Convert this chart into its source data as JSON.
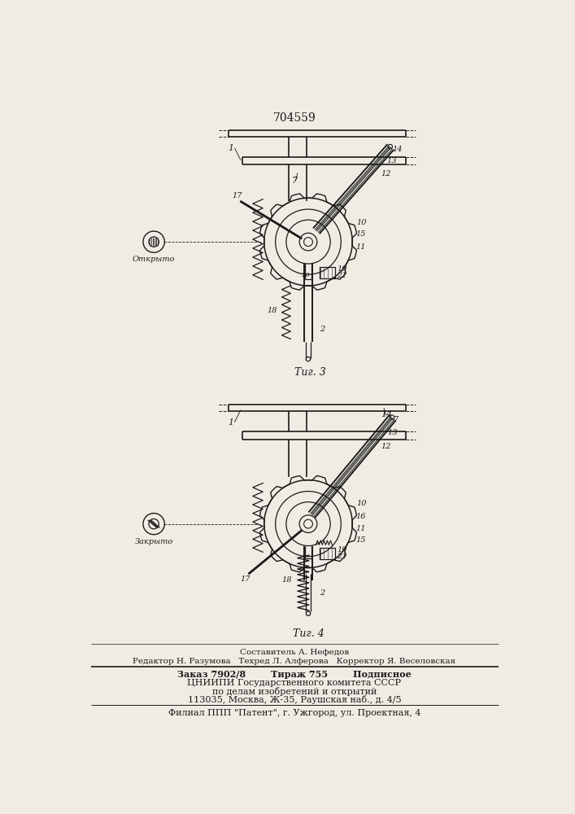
{
  "patent_number": "704559",
  "fig3_label": "Τиг. 3",
  "fig4_label": "Τиг. 4",
  "open_label": "Открыто",
  "closed_label": "Закрыто",
  "footer_line1": "Составитель А. Нефедов",
  "footer_line2": "Редактор Н. Разумова   Техред Л. Алферова   Корректор Я. Веселовская",
  "footer_line3": "Заказ 7902/8        Тираж 755        Подписное",
  "footer_line4": "ЦНИИПИ Государственного комитета СССР",
  "footer_line5": "по делам изобретений и открытий",
  "footer_line6": "113035, Москва, Ж-35, Раушская наб., д. 4/5",
  "footer_line7": "Филиал ППП \"Патент\", г. Ужгород, ул. Проектная, 4",
  "bg_color": "#f0ece4",
  "line_color": "#1a1a1a"
}
